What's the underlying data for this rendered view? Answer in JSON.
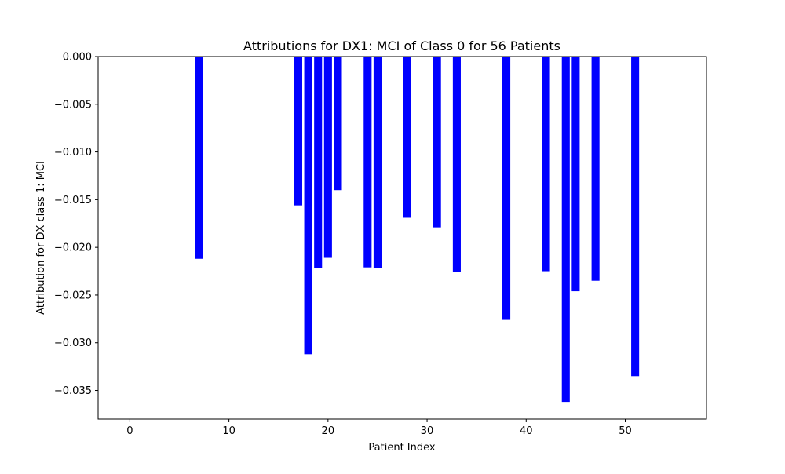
{
  "chart_data": {
    "type": "bar",
    "title": "Attributions for DX1: MCI of Class 0 for 56 Patients",
    "xlabel": "Patient Index",
    "ylabel": "Attribution for DX class 1: MCI",
    "xlim": [
      -3.2,
      58.2
    ],
    "ylim": [
      -0.038,
      0.0
    ],
    "xticks": [
      0,
      10,
      20,
      30,
      40,
      50
    ],
    "xtick_labels": [
      "0",
      "10",
      "20",
      "30",
      "40",
      "50"
    ],
    "yticks": [
      0.0,
      -0.005,
      -0.01,
      -0.015,
      -0.02,
      -0.025,
      -0.03,
      -0.035
    ],
    "ytick_labels": [
      "0.000",
      "−0.005",
      "−0.010",
      "−0.015",
      "−0.020",
      "−0.025",
      "−0.030",
      "−0.035"
    ],
    "bar_color": "#0000ff",
    "grid": false,
    "legend": "none",
    "bars": [
      {
        "x": 7,
        "value": -0.0212
      },
      {
        "x": 17,
        "value": -0.0156
      },
      {
        "x": 18,
        "value": -0.0312
      },
      {
        "x": 19,
        "value": -0.0222
      },
      {
        "x": 20,
        "value": -0.0211
      },
      {
        "x": 21,
        "value": -0.014
      },
      {
        "x": 24,
        "value": -0.0221
      },
      {
        "x": 25,
        "value": -0.0222
      },
      {
        "x": 28,
        "value": -0.0169
      },
      {
        "x": 31,
        "value": -0.0179
      },
      {
        "x": 33,
        "value": -0.0226
      },
      {
        "x": 38,
        "value": -0.0276
      },
      {
        "x": 42,
        "value": -0.0225
      },
      {
        "x": 44,
        "value": -0.0362
      },
      {
        "x": 45,
        "value": -0.0246
      },
      {
        "x": 47,
        "value": -0.0235
      },
      {
        "x": 51,
        "value": -0.0335
      }
    ]
  }
}
